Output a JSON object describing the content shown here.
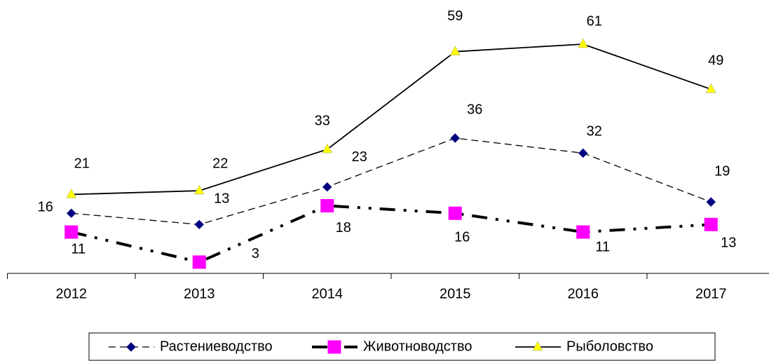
{
  "chart_data": {
    "type": "line",
    "categories": [
      "2012",
      "2013",
      "2014",
      "2015",
      "2016",
      "2017"
    ],
    "series": [
      {
        "name": "Растениеводство",
        "color": "#000080",
        "values": [
          16,
          13,
          23,
          36,
          32,
          19
        ]
      },
      {
        "name": "Животноводство",
        "color": "#ff00ff",
        "values": [
          11,
          3,
          18,
          16,
          11,
          13
        ]
      },
      {
        "name": "Рыболовство",
        "color": "#ffff00",
        "values": [
          21,
          22,
          33,
          59,
          61,
          49
        ]
      }
    ],
    "ylim": [
      0,
      72
    ],
    "legend": "bottom"
  }
}
